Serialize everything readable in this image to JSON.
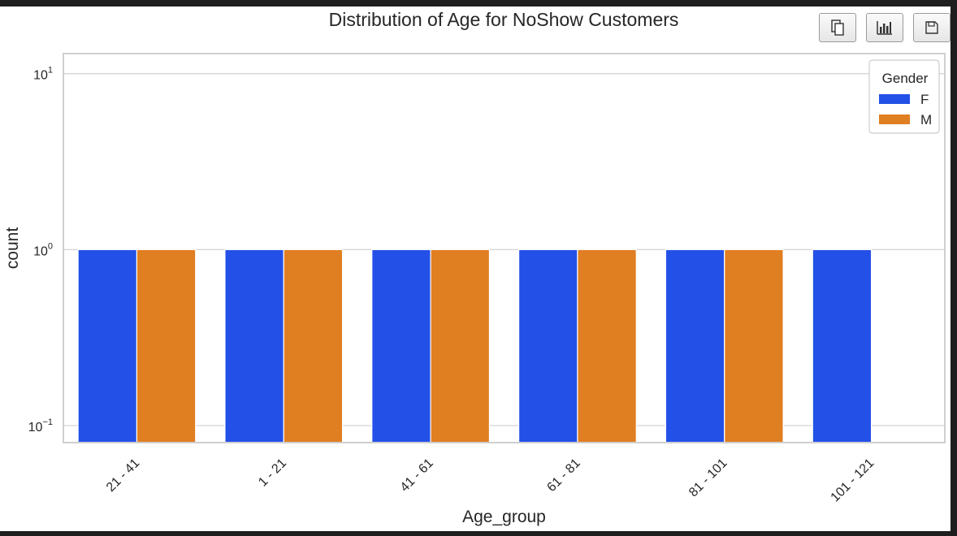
{
  "toolbar": {
    "buttons": [
      {
        "name": "copy-button",
        "icon": "copy-icon"
      },
      {
        "name": "chart-button",
        "icon": "bar-chart-icon"
      },
      {
        "name": "save-button",
        "icon": "save-icon"
      }
    ]
  },
  "chart_data": {
    "type": "bar",
    "title": "Distribution of Age for NoShow Customers",
    "xlabel": "Age_group",
    "ylabel": "count",
    "yscale": "log",
    "ylim": [
      0.08,
      13
    ],
    "yticks": [
      {
        "value": 0.1,
        "base": "10",
        "exp": "−1"
      },
      {
        "value": 1,
        "base": "10",
        "exp": "0"
      },
      {
        "value": 10,
        "base": "10",
        "exp": "1"
      }
    ],
    "grid": true,
    "categories": [
      "21 - 41",
      "1 - 21",
      "41 - 61",
      "61 - 81",
      "81 - 101",
      "101 - 121"
    ],
    "series": [
      {
        "name": "F",
        "color": "#2350e6",
        "values": [
          1,
          1,
          1,
          1,
          1,
          1
        ]
      },
      {
        "name": "M",
        "color": "#e07e22",
        "values": [
          1,
          1,
          1,
          1,
          1,
          null
        ]
      }
    ],
    "legend": {
      "title": "Gender",
      "placement": "top-right"
    }
  }
}
